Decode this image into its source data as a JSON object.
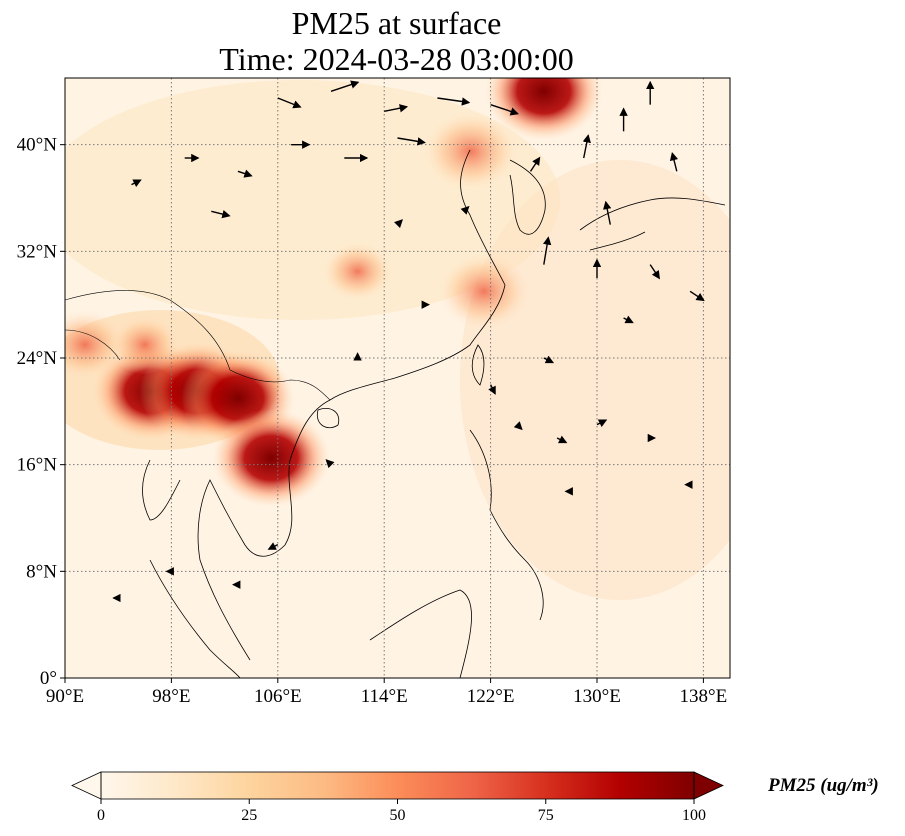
{
  "title": "PM25 at surface",
  "subtitle": "Time: 2024-03-28 03:00:00",
  "map": {
    "extent": {
      "lon": [
        90,
        140
      ],
      "lat": [
        0,
        45
      ]
    },
    "lon_ticks": [
      90,
      98,
      106,
      114,
      122,
      130,
      138
    ],
    "lat_ticks": [
      0,
      8,
      16,
      24,
      32,
      40
    ],
    "lon_tick_labels": [
      "90°E",
      "98°E",
      "106°E",
      "114°E",
      "122°E",
      "130°E",
      "138°E"
    ],
    "lat_tick_labels": [
      "0°",
      "8°N",
      "16°N",
      "24°N",
      "32°N",
      "40°N"
    ],
    "gridlines": true,
    "hotspots": [
      {
        "lon": 96.5,
        "lat": 21.5,
        "level": 100
      },
      {
        "lon": 100,
        "lat": 21.5,
        "level": 100
      },
      {
        "lon": 103,
        "lat": 21.0,
        "level": 95
      },
      {
        "lon": 105.5,
        "lat": 16.5,
        "level": 100
      },
      {
        "lon": 120.5,
        "lat": 39.5,
        "level": 75
      },
      {
        "lon": 126,
        "lat": 44,
        "level": 100
      },
      {
        "lon": 121.5,
        "lat": 29,
        "level": 70
      },
      {
        "lon": 91.5,
        "lat": 25,
        "level": 60
      },
      {
        "lon": 96,
        "lat": 25,
        "level": 45
      },
      {
        "lon": 112,
        "lat": 30.5,
        "level": 45
      }
    ],
    "wind_vectors": [
      {
        "lon": 106,
        "lat": 43.5,
        "u": 5,
        "v": -2
      },
      {
        "lon": 110,
        "lat": 44.0,
        "u": 6,
        "v": 2
      },
      {
        "lon": 114,
        "lat": 42.5,
        "u": 5,
        "v": 1
      },
      {
        "lon": 118,
        "lat": 43.5,
        "u": 7,
        "v": -1
      },
      {
        "lon": 122,
        "lat": 43.0,
        "u": 6,
        "v": -2
      },
      {
        "lon": 107,
        "lat": 40.0,
        "u": 4,
        "v": 0
      },
      {
        "lon": 111,
        "lat": 39.0,
        "u": 5,
        "v": 0
      },
      {
        "lon": 115,
        "lat": 40.5,
        "u": 6,
        "v": -1
      },
      {
        "lon": 103,
        "lat": 38.0,
        "u": 3,
        "v": -1
      },
      {
        "lon": 99,
        "lat": 39.0,
        "u": 3,
        "v": 0
      },
      {
        "lon": 95,
        "lat": 37.0,
        "u": 2,
        "v": 1
      },
      {
        "lon": 101,
        "lat": 35.0,
        "u": 4,
        "v": -1
      },
      {
        "lon": 125,
        "lat": 38.0,
        "u": 2,
        "v": 3
      },
      {
        "lon": 126,
        "lat": 31.0,
        "u": 1,
        "v": 6
      },
      {
        "lon": 129,
        "lat": 39.0,
        "u": 1,
        "v": 5
      },
      {
        "lon": 132,
        "lat": 41.0,
        "u": 0,
        "v": 5
      },
      {
        "lon": 134,
        "lat": 43.0,
        "u": 0,
        "v": 5
      },
      {
        "lon": 136,
        "lat": 38.0,
        "u": -1,
        "v": 4
      },
      {
        "lon": 131,
        "lat": 34.0,
        "u": -1,
        "v": 5
      },
      {
        "lon": 130,
        "lat": 30.0,
        "u": 0,
        "v": 4
      },
      {
        "lon": 134,
        "lat": 31.0,
        "u": 2,
        "v": -3
      },
      {
        "lon": 137,
        "lat": 29.0,
        "u": 3,
        "v": -2
      },
      {
        "lon": 132,
        "lat": 27.0,
        "u": 2,
        "v": -1
      },
      {
        "lon": 126,
        "lat": 24.0,
        "u": 2,
        "v": -1
      },
      {
        "lon": 122,
        "lat": 22.0,
        "u": 1,
        "v": -2
      },
      {
        "lon": 124,
        "lat": 19.0,
        "u": 1,
        "v": -1
      },
      {
        "lon": 127,
        "lat": 18.0,
        "u": 2,
        "v": -1
      },
      {
        "lon": 130,
        "lat": 19.0,
        "u": 2,
        "v": 1
      },
      {
        "lon": 134,
        "lat": 18.0,
        "u": 1,
        "v": 0
      },
      {
        "lon": 128,
        "lat": 14.0,
        "u": -1,
        "v": 0
      },
      {
        "lon": 137,
        "lat": 14.5,
        "u": -1,
        "v": 0
      },
      {
        "lon": 110,
        "lat": 16.0,
        "u": -1,
        "v": 1
      },
      {
        "lon": 106,
        "lat": 10.0,
        "u": -2,
        "v": -1
      },
      {
        "lon": 103,
        "lat": 7.0,
        "u": -1,
        "v": 0
      },
      {
        "lon": 98,
        "lat": 8.0,
        "u": -1,
        "v": 0
      },
      {
        "lon": 94,
        "lat": 6.0,
        "u": -1,
        "v": 0
      },
      {
        "lon": 112,
        "lat": 24.0,
        "u": 0,
        "v": 1
      },
      {
        "lon": 117,
        "lat": 28.0,
        "u": 1,
        "v": 0
      },
      {
        "lon": 115,
        "lat": 34.0,
        "u": 1,
        "v": 1
      },
      {
        "lon": 120,
        "lat": 35.0,
        "u": 1,
        "v": 1
      }
    ]
  },
  "colorbar": {
    "ticks": [
      0,
      25,
      50,
      75,
      100
    ],
    "tick_labels": [
      "0",
      "25",
      "50",
      "75",
      "100"
    ],
    "min": 0,
    "max": 100,
    "extend": "both",
    "cmap": "OrRd",
    "colors": [
      "#fff7ec",
      "#fee8c8",
      "#fdd49e",
      "#fdbb84",
      "#fc8d59",
      "#ef6548",
      "#d7301f",
      "#b30000",
      "#7f0000"
    ],
    "label": "PM25 (ug/m³)"
  }
}
